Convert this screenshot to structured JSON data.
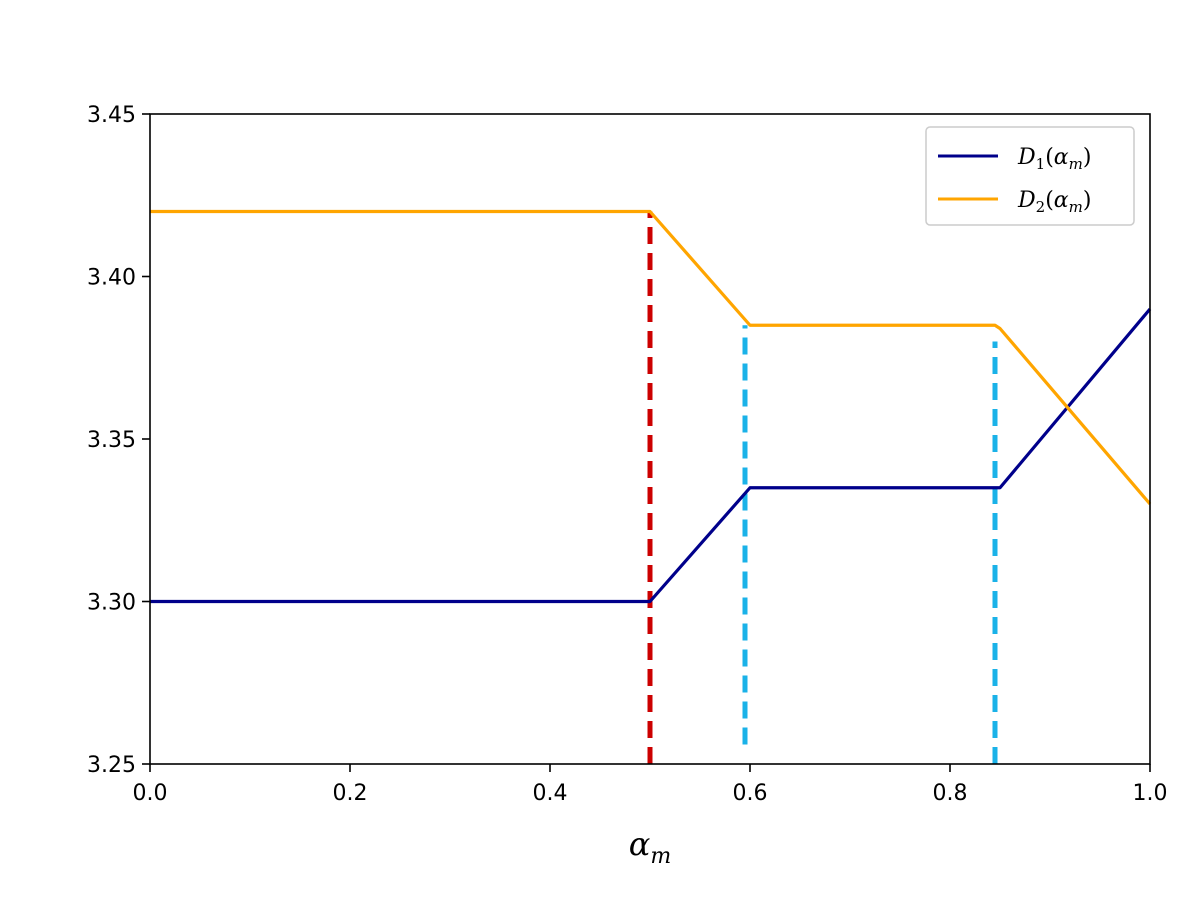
{
  "chart_data": {
    "type": "line",
    "title": "",
    "xlabel": {
      "main": "α",
      "sub": "m"
    },
    "ylabel": "",
    "xlim": [
      0.0,
      1.0
    ],
    "ylim": [
      3.25,
      3.45
    ],
    "xticks": [
      0.0,
      0.2,
      0.4,
      0.6,
      0.8,
      1.0
    ],
    "xtick_labels": [
      "0.0",
      "0.2",
      "0.4",
      "0.6",
      "0.8",
      "1.0"
    ],
    "yticks": [
      3.25,
      3.3,
      3.35,
      3.4,
      3.45
    ],
    "ytick_labels": [
      "3.25",
      "3.30",
      "3.35",
      "3.40",
      "3.45"
    ],
    "grid": false,
    "legend_position": "top-right",
    "series": [
      {
        "legend": {
          "main": "D",
          "sub1": "1",
          "paren_open": "(",
          "var": "α",
          "sub2": "m",
          "paren_close": ")"
        },
        "color": "#00008b",
        "x": [
          0.0,
          0.5,
          0.6,
          0.85,
          1.0
        ],
        "y": [
          3.3,
          3.3,
          3.335,
          3.335,
          3.39
        ]
      },
      {
        "legend": {
          "main": "D",
          "sub1": "2",
          "paren_open": "(",
          "var": "α",
          "sub2": "m",
          "paren_close": ")"
        },
        "color": "#ffa500",
        "x": [
          0.0,
          0.5,
          0.6,
          0.845,
          0.85,
          1.0
        ],
        "y": [
          3.42,
          3.42,
          3.385,
          3.385,
          3.384,
          3.33
        ]
      }
    ],
    "vlines": [
      {
        "x": 0.5,
        "y_from": 3.25,
        "y_to": 3.42,
        "color": "#cc0000",
        "style": "dashed"
      },
      {
        "x": 0.595,
        "y_from": 3.256,
        "y_to": 3.385,
        "color": "#1ab2e8",
        "style": "dashed"
      },
      {
        "x": 0.845,
        "y_from": 3.25,
        "y_to": 3.38,
        "color": "#1ab2e8",
        "style": "dashed"
      }
    ]
  }
}
